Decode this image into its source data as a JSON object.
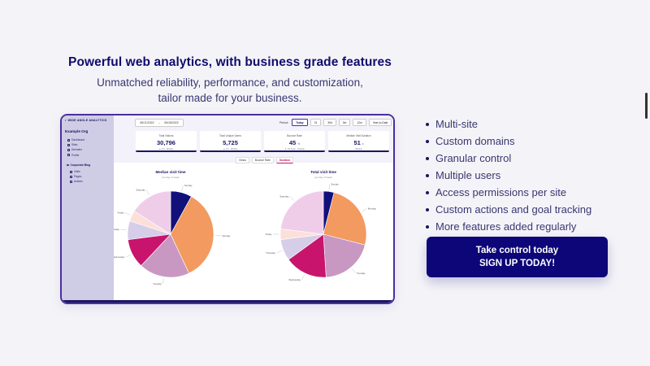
{
  "hero": {
    "title": "Powerful web analytics, with business grade features",
    "subtitle_line1": "Unmatched reliability, performance, and customization,",
    "subtitle_line2": "tailor made for your business."
  },
  "app": {
    "logo": "WIDE ANGLE ANALYTICS",
    "org": "Example Org",
    "nav": [
      "Dashboard",
      "Sites",
      "Domains",
      "Profile"
    ],
    "group": "Corporate Blog",
    "group_nav": [
      "Visits",
      "Pages",
      "Actions"
    ],
    "date_from": "06/11/2022",
    "date_sep": "→",
    "date_to": "06/18/2022",
    "period_label": "Period:",
    "periods": [
      "Today",
      "7d",
      "30d",
      "3m",
      "12m",
      "Year-to-Date"
    ],
    "stats": [
      {
        "label": "Total Visitors",
        "value": "30,796",
        "unit": "",
        "sub": "▲ 1% · Weekly"
      },
      {
        "label": "Total Unique Users",
        "value": "5,725",
        "unit": "",
        "sub": "▲ 1% · Weekly"
      },
      {
        "label": "Bounce Rate",
        "value": "45",
        "unit": "%",
        "sub": "▼ 1% lower · Weekly"
      },
      {
        "label": "Median Visit Duration",
        "value": "51",
        "unit": "s",
        "sub": "Weekly"
      }
    ],
    "tabs": [
      "Views",
      "Bounce Rate",
      "Duration"
    ],
    "active_tab": "Duration"
  },
  "chart_data": [
    {
      "type": "pie",
      "title": "Median visit time",
      "subtitle": "per day of week",
      "labels": [
        "Sunday",
        "Monday",
        "Tuesday",
        "Wednesday",
        "Thursday",
        "Friday",
        "Saturday"
      ],
      "values": [
        8,
        35,
        19,
        11,
        7,
        4,
        16
      ],
      "colors": [
        "#12107a",
        "#f29a5f",
        "#c898c3",
        "#c8146c",
        "#d6cde9",
        "#fbe0d9",
        "#efcde9"
      ]
    },
    {
      "type": "pie",
      "title": "Total visit time",
      "subtitle": "per day of week",
      "labels": [
        "Sunday",
        "Monday",
        "Tuesday",
        "Wednesday",
        "Thursday",
        "Friday",
        "Saturday"
      ],
      "values": [
        4,
        25,
        20,
        16,
        8,
        4,
        23
      ],
      "colors": [
        "#12107a",
        "#f29a5f",
        "#c898c3",
        "#c8146c",
        "#d6cde9",
        "#fbe0d9",
        "#efcde9"
      ]
    }
  ],
  "features": [
    "Multi-site",
    "Custom domains",
    "Granular control",
    "Multiple users",
    "Access permissions per site",
    "Custom actions and goal tracking",
    "More features added regularly"
  ],
  "cta": {
    "line1": "Take control today",
    "line2": "SIGN UP TODAY!"
  }
}
